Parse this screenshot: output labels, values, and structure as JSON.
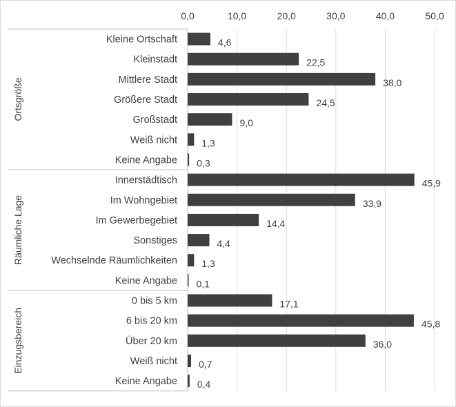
{
  "chart_data": {
    "type": "bar",
    "orientation": "horizontal",
    "title": "",
    "xlabel": "",
    "ylabel": "",
    "xlim": [
      0,
      50
    ],
    "ticks": [
      "0,0",
      "10,0",
      "20,0",
      "30,0",
      "40,0",
      "50,0"
    ],
    "grid": true,
    "axis_position": "top",
    "colors": {
      "bar": "#404040",
      "grid": "#d9d9d9",
      "text": "#404040"
    },
    "groups": [
      {
        "name": "Ortsgröße",
        "categories": [
          "Kleine Ortschaft",
          "Kleinstadt",
          "Mittlere Stadt",
          "Größere Stadt",
          "Großstadt",
          "Weiß nicht",
          "Keine Angabe"
        ],
        "values": [
          4.6,
          22.5,
          38.0,
          24.5,
          9.0,
          1.3,
          0.3
        ],
        "labels": [
          "4,6",
          "22,5",
          "38,0",
          "24,5",
          "9,0",
          "1,3",
          "0,3"
        ]
      },
      {
        "name": "Räumliche Lage",
        "categories": [
          "Innerstädtisch",
          "Im Wohngebiet",
          "Im Gewerbegebiet",
          "Sonstiges",
          "Wechselnde Räumlichkeiten",
          "Keine Angabe"
        ],
        "values": [
          45.9,
          33.9,
          14.4,
          4.4,
          1.3,
          0.1
        ],
        "labels": [
          "45,9",
          "33,9",
          "14,4",
          "4,4",
          "1,3",
          "0,1"
        ]
      },
      {
        "name": "Einzugsbereich",
        "categories": [
          "0 bis 5 km",
          "6 bis 20 km",
          "Über 20 km",
          "Weiß nicht",
          "Keine Angabe"
        ],
        "values": [
          17.1,
          45.8,
          36.0,
          0.7,
          0.4
        ],
        "labels": [
          "17,1",
          "45,8",
          "36,0",
          "0,7",
          "0,4"
        ]
      }
    ]
  }
}
